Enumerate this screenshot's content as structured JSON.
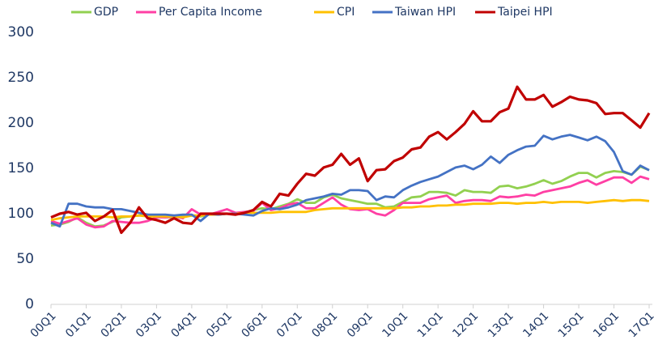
{
  "chart_data": {
    "type": "line",
    "categories": [
      "00Q1",
      null,
      null,
      null,
      "01Q1",
      null,
      null,
      null,
      "02Q1",
      null,
      null,
      null,
      "03Q1",
      null,
      null,
      null,
      "04Q1",
      null,
      null,
      null,
      "05Q1",
      null,
      null,
      null,
      "06Q1",
      null,
      null,
      null,
      "07Q1",
      null,
      null,
      null,
      "08Q1",
      null,
      null,
      null,
      "09Q1",
      null,
      null,
      null,
      "10Q1",
      null,
      null,
      null,
      "11Q1",
      null,
      null,
      null,
      "12Q1",
      null,
      null,
      null,
      "13Q1",
      null,
      null,
      null,
      "14Q1",
      null,
      null,
      null,
      "15Q1",
      null,
      null,
      null,
      "16Q1",
      null,
      null,
      null,
      "17Q1"
    ],
    "series": [
      {
        "name": "GDP",
        "color": "#92d050",
        "values": [
          87,
          88,
          91,
          96,
          90,
          86,
          87,
          91,
          96,
          97,
          98,
          99,
          97,
          96,
          96,
          97,
          98,
          97,
          99,
          99,
          100,
          100,
          101,
          104,
          106,
          105,
          108,
          111,
          116,
          112,
          112,
          118,
          121,
          117,
          115,
          113,
          111,
          111,
          107,
          108,
          113,
          118,
          119,
          124,
          124,
          123,
          120,
          126,
          124,
          124,
          123,
          130,
          131,
          128,
          130,
          133,
          137,
          133,
          136,
          141,
          145,
          145,
          140,
          145,
          147,
          146,
          143,
          152,
          148
        ]
      },
      {
        "name": "Per Capita Income",
        "color": "#ff3fa4",
        "values": [
          92,
          89,
          92,
          95,
          88,
          85,
          86,
          92,
          91,
          90,
          90,
          92,
          96,
          96,
          97,
          95,
          105,
          99,
          99,
          102,
          105,
          101,
          102,
          103,
          112,
          104,
          106,
          110,
          112,
          106,
          106,
          112,
          118,
          110,
          105,
          104,
          105,
          100,
          98,
          104,
          112,
          112,
          112,
          116,
          118,
          120,
          112,
          114,
          115,
          115,
          114,
          119,
          118,
          119,
          121,
          120,
          124,
          126,
          128,
          130,
          134,
          137,
          132,
          136,
          140,
          140,
          134,
          141,
          138
        ]
      },
      {
        "name": "CPI",
        "color": "#ffc000",
        "values": [
          93,
          95,
          96,
          97,
          97,
          97,
          97,
          96,
          97,
          97,
          98,
          97,
          97,
          97,
          97,
          96,
          98,
          98,
          99,
          99,
          100,
          100,
          101,
          101,
          101,
          101,
          102,
          102,
          102,
          102,
          104,
          105,
          106,
          106,
          106,
          106,
          106,
          106,
          106,
          106,
          107,
          107,
          108,
          108,
          109,
          109,
          110,
          110,
          111,
          111,
          111,
          112,
          112,
          111,
          112,
          112,
          113,
          112,
          113,
          113,
          113,
          112,
          113,
          114,
          115,
          114,
          115,
          115,
          114
        ]
      },
      {
        "name": "Taiwan HPI",
        "color": "#4472c4",
        "values": [
          90,
          86,
          111,
          111,
          108,
          107,
          107,
          105,
          105,
          103,
          101,
          99,
          99,
          99,
          98,
          99,
          99,
          92,
          100,
          99,
          100,
          100,
          99,
          98,
          103,
          106,
          105,
          107,
          110,
          115,
          117,
          119,
          122,
          121,
          126,
          126,
          125,
          115,
          119,
          118,
          126,
          131,
          135,
          138,
          141,
          146,
          151,
          153,
          149,
          154,
          163,
          156,
          165,
          170,
          174,
          175,
          186,
          182,
          185,
          187,
          184,
          181,
          185,
          180,
          168,
          147,
          143,
          153,
          148
        ]
      },
      {
        "name": "Taipei HPI",
        "color": "#c00000",
        "values": [
          96,
          100,
          102,
          99,
          101,
          92,
          97,
          104,
          79,
          90,
          107,
          95,
          93,
          90,
          95,
          90,
          89,
          100,
          100,
          100,
          100,
          99,
          101,
          104,
          113,
          108,
          122,
          120,
          133,
          144,
          142,
          151,
          154,
          166,
          154,
          161,
          136,
          148,
          149,
          158,
          162,
          171,
          173,
          185,
          190,
          182,
          190,
          199,
          213,
          202,
          202,
          212,
          216,
          240,
          226,
          226,
          231,
          218,
          223,
          229,
          226,
          225,
          222,
          210,
          211,
          211,
          203,
          195,
          211
        ]
      }
    ],
    "ylim": [
      0,
      300
    ],
    "yticks": [
      0,
      50,
      100,
      150,
      200,
      250,
      300
    ]
  }
}
